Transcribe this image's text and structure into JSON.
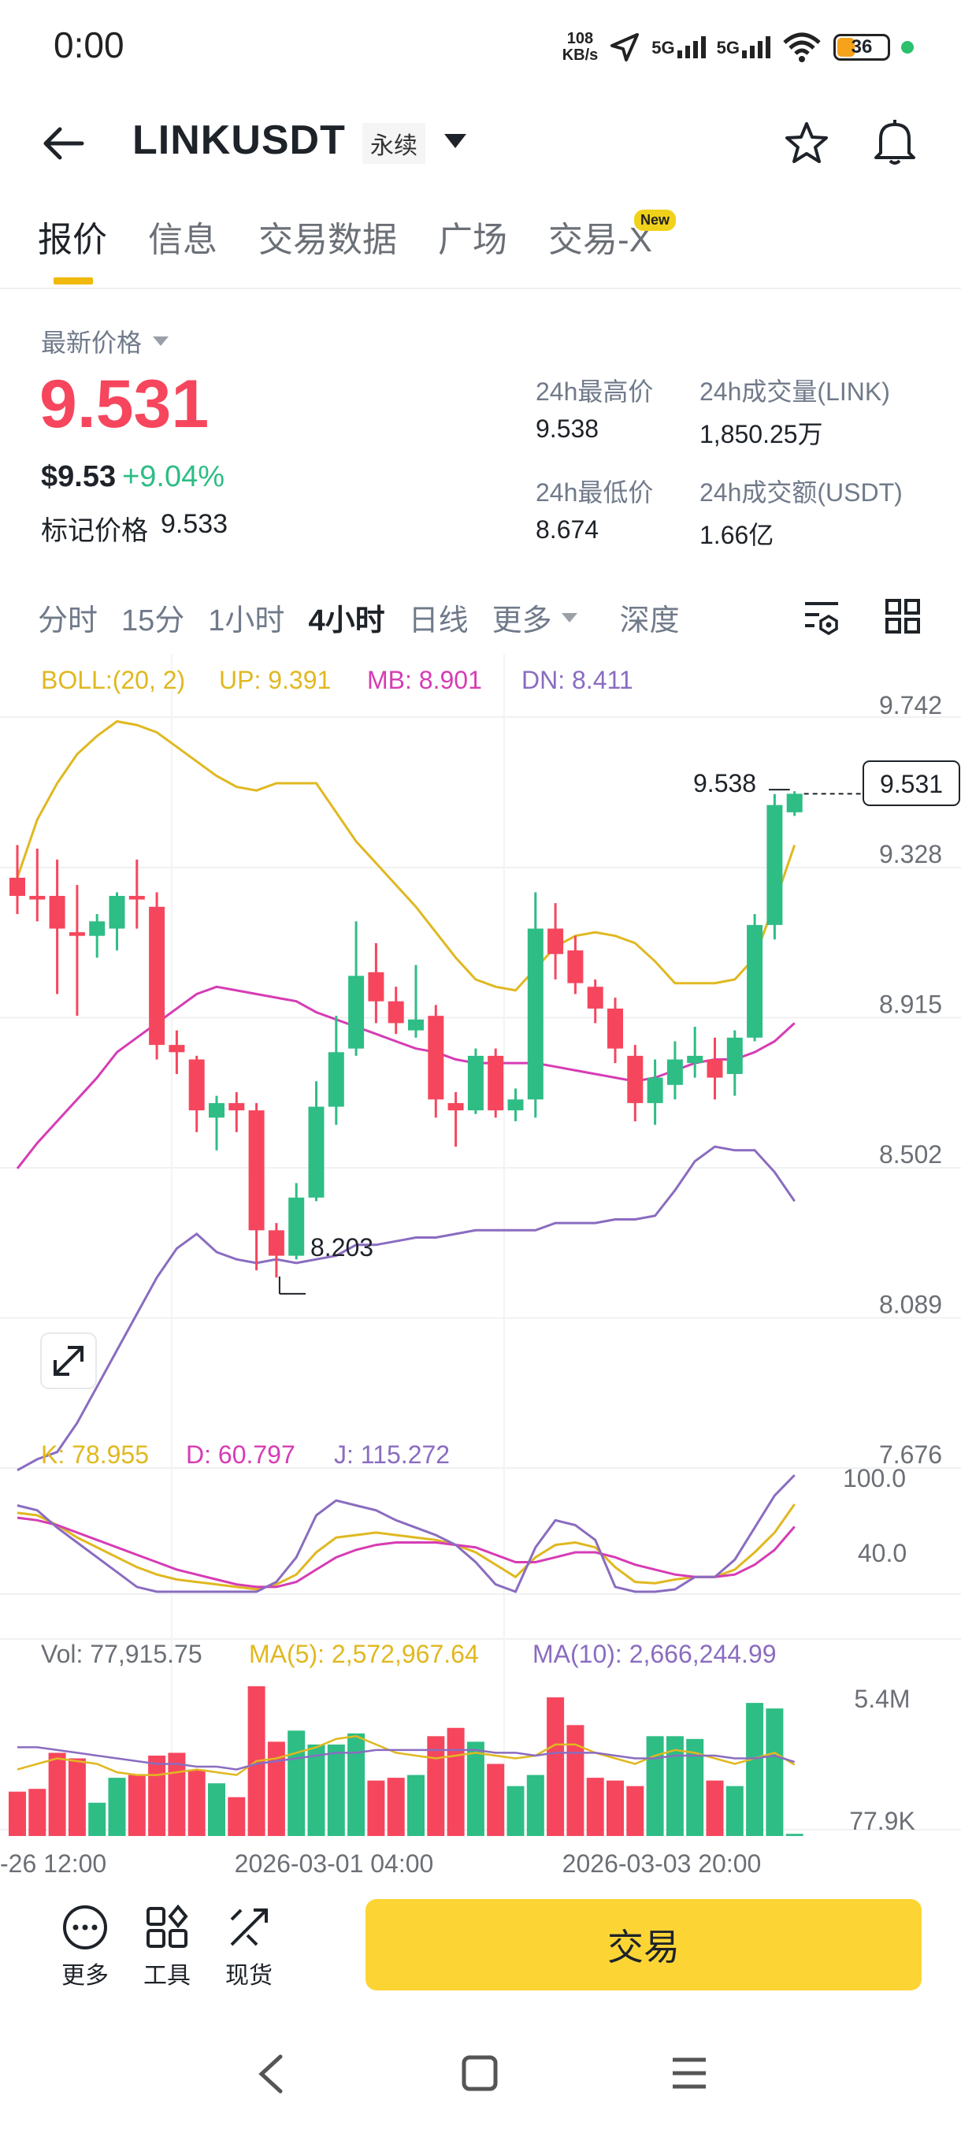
{
  "status_bar": {
    "time": "0:00",
    "netspeed_value": "108",
    "netspeed_unit": "KB/s",
    "sig1": "5G",
    "sig2": "5G",
    "battery": "36"
  },
  "header": {
    "title": "LINKUSDT",
    "contract_tag": "永续"
  },
  "tabs": [
    {
      "label": "报价"
    },
    {
      "label": "信息"
    },
    {
      "label": "交易数据"
    },
    {
      "label": "广场"
    },
    {
      "label": "交易-X"
    }
  ],
  "new_badge": "New",
  "price": {
    "latest_label": "最新价格",
    "last": "9.531",
    "usd": "$9.53",
    "change": "+9.04%",
    "mark_label": "标记价格",
    "mark_value": "9.533"
  },
  "stats": {
    "high_label": "24h最高价",
    "high": "9.538",
    "vol_label": "24h成交量(LINK)",
    "vol": "1,850.25万",
    "low_label": "24h最低价",
    "low": "8.674",
    "turnover_label": "24h成交额(USDT)",
    "turnover": "1.66亿"
  },
  "intervals": [
    "分时",
    "15分",
    "1小时",
    "4小时",
    "日线",
    "更多",
    "深度"
  ],
  "active_interval": "4小时",
  "colors": {
    "up": "#2ebd85",
    "down": "#f6465d",
    "accent": "#fcd535",
    "boll_up": "#e0b820",
    "boll_mb": "#d63cb4",
    "boll_dn": "#8a6cc0"
  },
  "chart_data": {
    "type": "candlestick",
    "indicators": {
      "boll": {
        "label": "BOLL:(20, 2)",
        "up": "UP: 9.391",
        "mb": "MB: 8.901",
        "dn": "DN: 8.411"
      },
      "kdj": {
        "k": "K: 78.955",
        "d": "D: 60.797",
        "j": "J: 115.272"
      },
      "vol": {
        "vol": "Vol: 77,915.75",
        "ma5": "MA(5): 2,572,967.64",
        "ma10": "MA(10): 2,666,244.99"
      }
    },
    "price_axis": [
      "9.742",
      "9.328",
      "8.915",
      "8.502",
      "8.089",
      "7.676"
    ],
    "price_range": [
      7.676,
      9.742
    ],
    "kdj_axis": [
      "100.0",
      "40.0"
    ],
    "vol_axis": [
      "5.4M",
      "77.9K"
    ],
    "time_labels": [
      "-26 12:00",
      "2026-03-01 04:00",
      "2026-03-03 20:00"
    ],
    "last_price_tag": "9.531",
    "high_marker": "9.538",
    "low_marker": "8.203",
    "candles": [
      [
        9.3,
        9.25,
        9.39,
        9.2
      ],
      [
        9.25,
        9.24,
        9.38,
        9.18
      ],
      [
        9.25,
        9.16,
        9.35,
        8.98
      ],
      [
        9.15,
        9.14,
        9.28,
        8.92
      ],
      [
        9.14,
        9.18,
        9.2,
        9.08
      ],
      [
        9.16,
        9.25,
        9.26,
        9.1
      ],
      [
        9.25,
        9.24,
        9.35,
        9.16
      ],
      [
        9.22,
        8.84,
        9.26,
        8.8
      ],
      [
        8.84,
        8.82,
        8.88,
        8.76
      ],
      [
        8.8,
        8.66,
        8.81,
        8.6
      ],
      [
        8.64,
        8.68,
        8.7,
        8.55
      ],
      [
        8.68,
        8.66,
        8.71,
        8.6
      ],
      [
        8.66,
        8.33,
        8.68,
        8.22
      ],
      [
        8.33,
        8.26,
        8.35,
        8.2
      ],
      [
        8.26,
        8.42,
        8.46,
        8.25
      ],
      [
        8.42,
        8.67,
        8.74,
        8.41
      ],
      [
        8.67,
        8.82,
        8.92,
        8.62
      ],
      [
        8.83,
        9.03,
        9.18,
        8.81
      ],
      [
        9.04,
        8.96,
        9.12,
        8.9
      ],
      [
        8.96,
        8.9,
        9.0,
        8.87
      ],
      [
        8.88,
        8.91,
        9.06,
        8.86
      ],
      [
        8.92,
        8.69,
        8.95,
        8.64
      ],
      [
        8.68,
        8.66,
        8.71,
        8.56
      ],
      [
        8.66,
        8.81,
        8.83,
        8.65
      ],
      [
        8.81,
        8.66,
        8.83,
        8.64
      ],
      [
        8.66,
        8.69,
        8.72,
        8.63
      ],
      [
        8.69,
        9.16,
        9.26,
        8.64
      ],
      [
        9.16,
        9.09,
        9.23,
        9.02
      ],
      [
        9.1,
        9.01,
        9.14,
        8.98
      ],
      [
        9.0,
        8.94,
        9.02,
        8.9
      ],
      [
        8.94,
        8.83,
        8.97,
        8.79
      ],
      [
        8.81,
        8.68,
        8.84,
        8.63
      ],
      [
        8.68,
        8.75,
        8.8,
        8.62
      ],
      [
        8.73,
        8.8,
        8.85,
        8.69
      ],
      [
        8.79,
        8.81,
        8.89,
        8.75
      ],
      [
        8.8,
        8.75,
        8.86,
        8.69
      ],
      [
        8.76,
        8.86,
        8.88,
        8.7
      ],
      [
        8.86,
        9.17,
        9.2,
        8.85
      ],
      [
        9.17,
        9.5,
        9.53,
        9.13
      ],
      [
        9.48,
        9.531,
        9.538,
        9.47
      ]
    ],
    "boll_up_line": [
      9.3,
      9.46,
      9.56,
      9.64,
      9.69,
      9.73,
      9.72,
      9.7,
      9.66,
      9.62,
      9.58,
      9.55,
      9.54,
      9.56,
      9.56,
      9.56,
      9.48,
      9.4,
      9.34,
      9.28,
      9.22,
      9.15,
      9.08,
      9.02,
      9.0,
      8.99,
      9.05,
      9.11,
      9.14,
      9.15,
      9.14,
      9.12,
      9.07,
      9.01,
      9.01,
      9.01,
      9.02,
      9.08,
      9.23,
      9.39
    ],
    "boll_mb_line": [
      8.5,
      8.57,
      8.63,
      8.69,
      8.75,
      8.82,
      8.86,
      8.9,
      8.94,
      8.98,
      9.0,
      8.99,
      8.98,
      8.97,
      8.96,
      8.93,
      8.91,
      8.89,
      8.87,
      8.85,
      8.83,
      8.82,
      8.8,
      8.79,
      8.79,
      8.79,
      8.79,
      8.78,
      8.77,
      8.76,
      8.75,
      8.74,
      8.75,
      8.77,
      8.79,
      8.8,
      8.8,
      8.82,
      8.85,
      8.9
    ],
    "boll_dn_line": [
      7.67,
      7.7,
      7.72,
      7.8,
      7.9,
      8.0,
      8.1,
      8.2,
      8.28,
      8.32,
      8.27,
      8.25,
      8.24,
      8.25,
      8.24,
      8.25,
      8.26,
      8.29,
      8.29,
      8.3,
      8.31,
      8.31,
      8.32,
      8.33,
      8.33,
      8.33,
      8.33,
      8.35,
      8.35,
      8.35,
      8.36,
      8.36,
      8.37,
      8.44,
      8.52,
      8.56,
      8.55,
      8.55,
      8.49,
      8.41
    ],
    "kdj_k": [
      72,
      70,
      62,
      52,
      44,
      36,
      28,
      22,
      18,
      16,
      14,
      12,
      10,
      14,
      22,
      40,
      52,
      54,
      56,
      54,
      52,
      50,
      46,
      40,
      30,
      20,
      36,
      46,
      48,
      44,
      28,
      16,
      15,
      18,
      20,
      20,
      26,
      40,
      56,
      78.955
    ],
    "kdj_d": [
      68,
      66,
      62,
      56,
      50,
      44,
      38,
      32,
      26,
      22,
      18,
      14,
      12,
      12,
      16,
      26,
      36,
      42,
      46,
      48,
      48,
      48,
      46,
      44,
      38,
      32,
      32,
      36,
      40,
      40,
      36,
      30,
      26,
      22,
      20,
      20,
      22,
      30,
      42,
      60.797
    ],
    "kdj_j": [
      78,
      74,
      60,
      48,
      36,
      24,
      12,
      6,
      2,
      4,
      8,
      6,
      4,
      16,
      36,
      70,
      82,
      78,
      74,
      66,
      60,
      54,
      46,
      32,
      14,
      -4,
      44,
      66,
      62,
      50,
      12,
      -8,
      -6,
      10,
      20,
      20,
      34,
      60,
      86,
      115.272
    ],
    "volumes": [
      1.6,
      1.7,
      3.0,
      2.8,
      1.2,
      2.1,
      2.2,
      2.9,
      3.0,
      2.4,
      1.9,
      1.4,
      5.4,
      3.4,
      3.8,
      3.3,
      3.3,
      3.7,
      2.0,
      2.1,
      2.2,
      3.6,
      3.9,
      3.4,
      2.6,
      1.8,
      2.2,
      5.0,
      4.0,
      2.1,
      2.0,
      1.8,
      3.6,
      3.6,
      3.5,
      2.0,
      1.8,
      4.8,
      4.6,
      0.078
    ],
    "vol_ma5": [
      2.4,
      2.6,
      2.8,
      2.7,
      2.6,
      2.3,
      2.2,
      2.2,
      2.3,
      2.4,
      2.3,
      2.2,
      2.7,
      2.8,
      3.0,
      3.2,
      3.5,
      3.6,
      3.3,
      3.0,
      2.9,
      2.8,
      2.9,
      3.0,
      2.9,
      2.8,
      2.9,
      3.3,
      3.3,
      3.0,
      2.8,
      2.6,
      2.9,
      3.1,
      3.0,
      2.8,
      2.6,
      2.8,
      3.0,
      2.57
    ],
    "vol_ma10": [
      3.2,
      3.2,
      3.1,
      3.0,
      2.9,
      2.8,
      2.7,
      2.6,
      2.6,
      2.5,
      2.5,
      2.4,
      2.6,
      2.7,
      2.8,
      2.9,
      3.0,
      3.0,
      3.1,
      3.1,
      3.1,
      3.1,
      3.1,
      3.1,
      3.0,
      3.0,
      2.9,
      3.0,
      3.0,
      3.0,
      2.9,
      2.8,
      2.8,
      2.9,
      2.9,
      2.9,
      2.8,
      2.8,
      2.9,
      2.67
    ]
  },
  "bottom": {
    "more": "更多",
    "tools": "工具",
    "spot": "现货",
    "trade": "交易"
  }
}
